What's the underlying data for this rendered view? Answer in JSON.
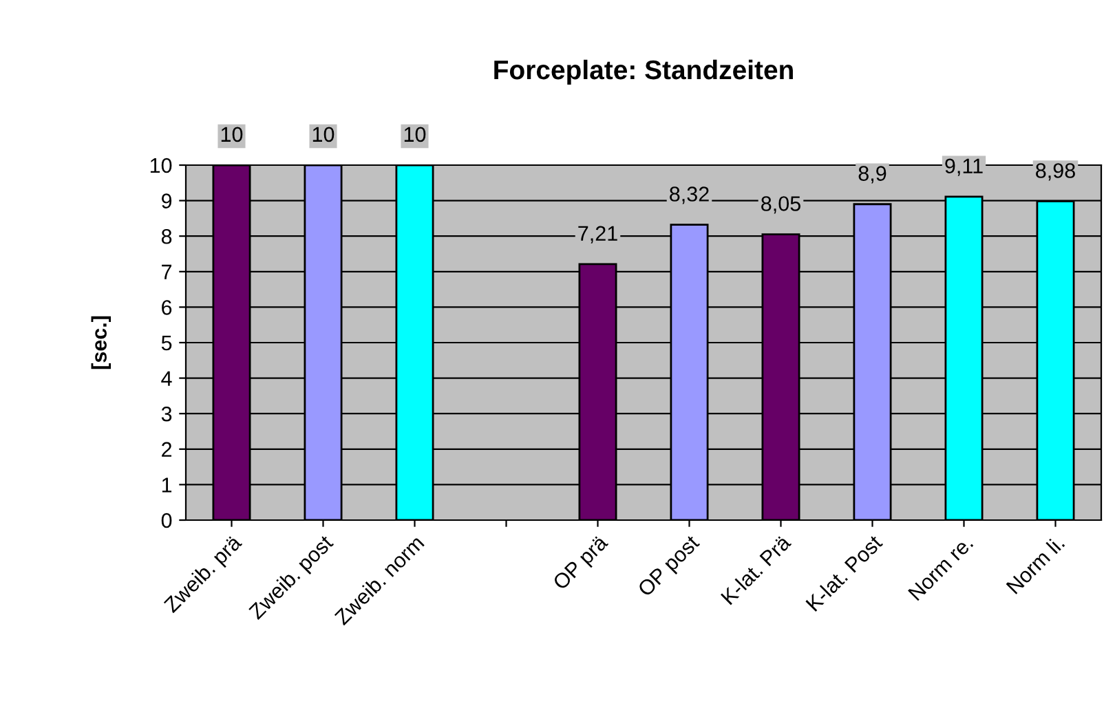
{
  "chart_data": {
    "type": "bar",
    "title": "Forceplate: Standzeiten",
    "ylabel": "[sec.]",
    "categories": [
      "Zweib. prä",
      "Zweib. post",
      "Zweib. norm",
      null,
      "OP prä",
      "OP post",
      "K-lat. Prä",
      "K-lat. Post",
      "Norm re.",
      "Norm li."
    ],
    "values": [
      10,
      10,
      10,
      null,
      7.21,
      8.32,
      8.05,
      8.9,
      9.11,
      8.98
    ],
    "value_labels": [
      "10",
      "10",
      "10",
      null,
      "7,21",
      "8,32",
      "8,05",
      "8,9",
      "9,11",
      "8,98"
    ],
    "colors": [
      "#660066",
      "#9999ff",
      "#00ffff",
      "#c0c0c0",
      "#660066",
      "#9999ff",
      "#660066",
      "#9999ff",
      "#00ffff",
      "#00ffff"
    ],
    "ylim": [
      0,
      10
    ],
    "yticks": [
      0,
      1,
      2,
      3,
      4,
      5,
      6,
      7,
      8,
      9,
      10
    ],
    "grid": "y",
    "legend": false
  }
}
